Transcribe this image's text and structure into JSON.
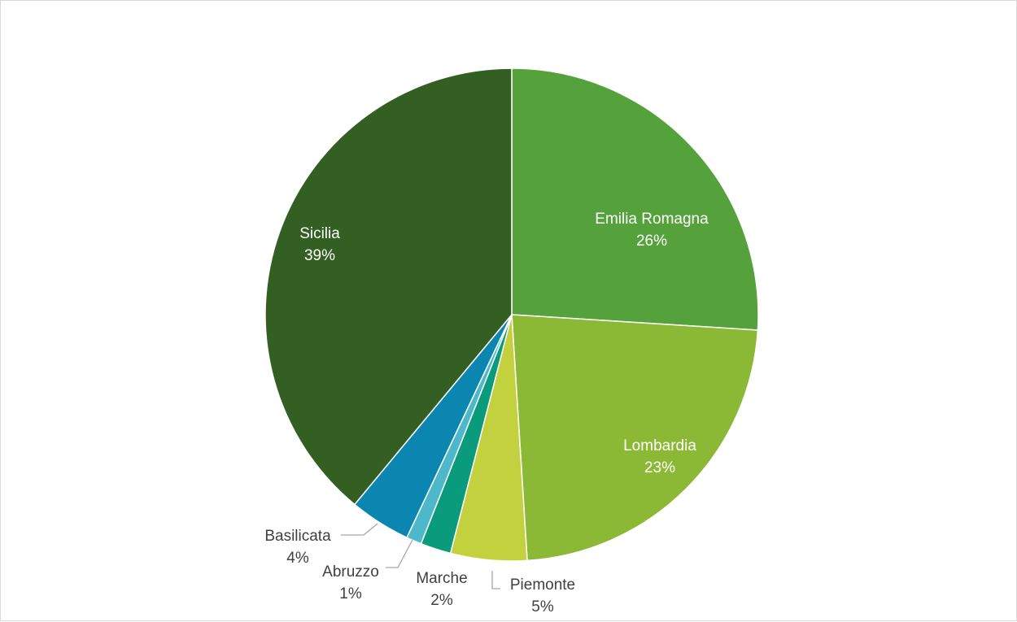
{
  "chart_data": {
    "type": "pie",
    "title": "",
    "categories": [
      "Emilia Romagna",
      "Lombardia",
      "Piemonte",
      "Marche",
      "Abruzzo",
      "Basilicata",
      "Sicilia"
    ],
    "values": [
      26,
      23,
      5,
      2,
      1,
      4,
      39
    ],
    "value_labels": [
      "26%",
      "23%",
      "5%",
      "2%",
      "1%",
      "4%",
      "39%"
    ],
    "colors": [
      "#55a13b",
      "#8cb935",
      "#c3d13e",
      "#099b7c",
      "#4db8c9",
      "#0b86b0",
      "#335f22"
    ],
    "label_colors": [
      "#ffffff",
      "#ffffff",
      "#404040",
      "#404040",
      "#404040",
      "#404040",
      "#ffffff"
    ],
    "start_angle": "12 o'clock",
    "direction": "clockwise",
    "legend": "none",
    "data_labels": "category name and percentage"
  }
}
